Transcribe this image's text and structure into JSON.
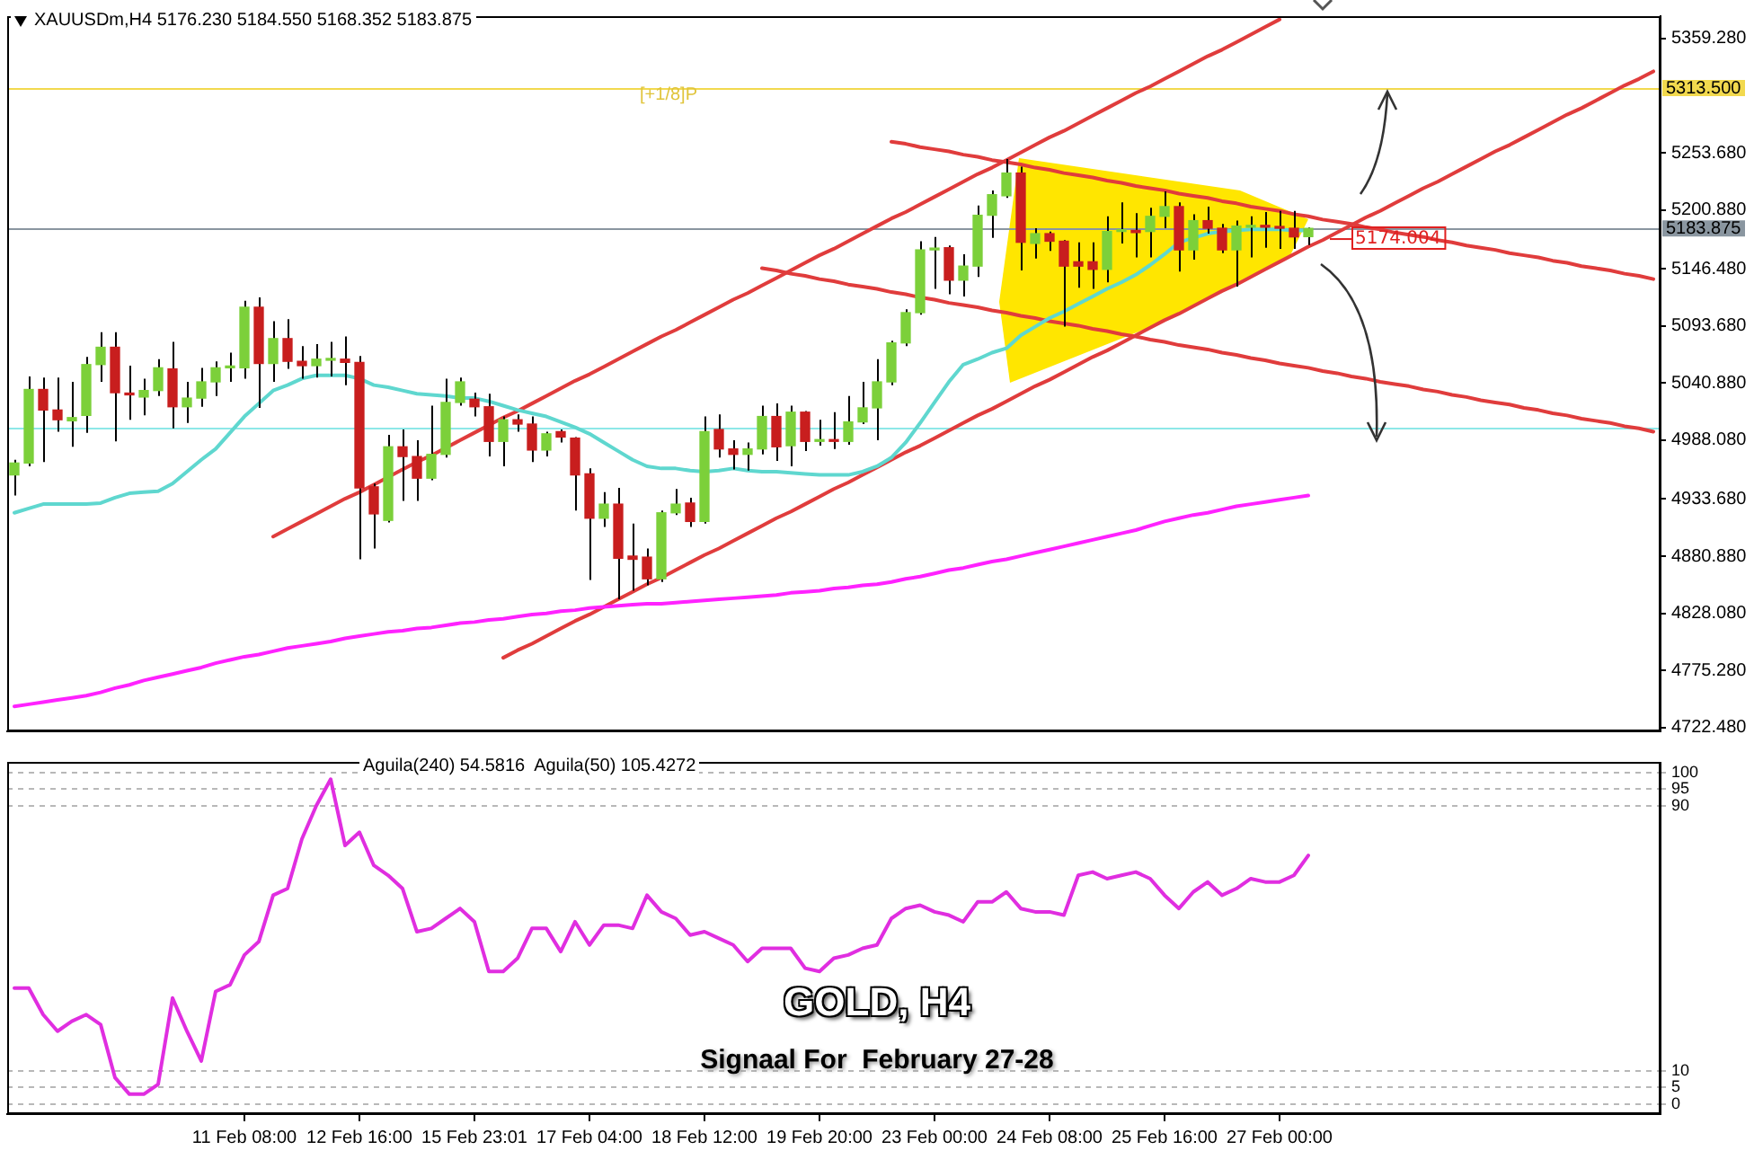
{
  "chart_data": [
    {
      "type": "candlestick",
      "title": "XAUUSDm,H4 5176.230 5184.550 5168.352 5183.875",
      "categories": [
        null,
        null,
        null,
        null,
        null,
        null,
        null,
        null,
        null,
        null,
        null,
        null,
        null,
        null,
        null,
        null,
        null,
        null,
        null,
        null,
        null,
        null,
        null,
        null,
        null,
        null,
        null,
        null,
        null,
        null,
        null,
        null,
        null,
        null,
        null,
        null,
        null,
        null,
        null,
        null,
        null,
        null,
        null,
        null,
        null,
        null,
        null,
        null,
        null,
        null,
        null,
        null,
        null,
        null,
        null,
        null,
        null,
        null,
        null,
        null,
        null,
        null,
        null,
        null,
        null,
        null,
        null,
        null,
        null,
        null,
        null,
        null,
        null,
        null,
        null,
        null,
        null,
        null,
        null,
        null,
        null,
        null,
        null,
        null,
        null,
        null,
        null,
        null,
        null,
        null,
        null,
        null,
        null,
        null,
        null,
        null,
        null,
        null,
        null,
        null,
        null,
        null,
        null,
        null,
        null,
        null,
        null,
        null,
        null,
        null,
        null,
        null,
        null,
        null,
        null
      ],
      "ohlc": [
        [
          4956,
          4970,
          4937,
          4967
        ],
        [
          4967,
          5047,
          4964,
          5035
        ],
        [
          5035,
          5046,
          4968,
          5016
        ],
        [
          5016,
          5046,
          4996,
          5007
        ],
        [
          5006,
          5042,
          4982,
          5009
        ],
        [
          5011,
          5065,
          4995,
          5058
        ],
        [
          5058,
          5088,
          5042,
          5074
        ],
        [
          5074,
          5088,
          4987,
          5032
        ],
        [
          5031,
          5057,
          5007,
          5030
        ],
        [
          5028,
          5045,
          5011,
          5034
        ],
        [
          5034,
          5063,
          5029,
          5055
        ],
        [
          5054,
          5079,
          4999,
          5019
        ],
        [
          5019,
          5042,
          5004,
          5027
        ],
        [
          5027,
          5055,
          5019,
          5042
        ],
        [
          5042,
          5061,
          5029,
          5055
        ],
        [
          5055,
          5069,
          5042,
          5056
        ],
        [
          5055,
          5117,
          5045,
          5111
        ],
        [
          5111,
          5120,
          5018,
          5059
        ],
        [
          5059,
          5098,
          5042,
          5082
        ],
        [
          5082,
          5100,
          5054,
          5061
        ],
        [
          5061,
          5075,
          5045,
          5057
        ],
        [
          5057,
          5077,
          5046,
          5063
        ],
        [
          5062,
          5079,
          5047,
          5063
        ],
        [
          5063,
          5084,
          5039,
          5060
        ],
        [
          5060,
          5066,
          4878,
          4944
        ],
        [
          4945,
          4948,
          4888,
          4920
        ],
        [
          4914,
          4993,
          4912,
          4982
        ],
        [
          4982,
          4998,
          4932,
          4973
        ],
        [
          4973,
          4988,
          4932,
          4953
        ],
        [
          4953,
          5020,
          4951,
          4975
        ],
        [
          4975,
          5045,
          4972,
          5023
        ],
        [
          5023,
          5046,
          5020,
          5042
        ],
        [
          5026,
          5032,
          5010,
          5019
        ],
        [
          5019,
          5031,
          4973,
          4987
        ],
        [
          4987,
          5010,
          4964,
          5007
        ],
        [
          5007,
          5012,
          4996,
          5003
        ],
        [
          5003,
          5010,
          4968,
          4979
        ],
        [
          4979,
          4996,
          4973,
          4994
        ],
        [
          4996,
          4998,
          4986,
          4991
        ],
        [
          4990,
          4991,
          4923,
          4956
        ],
        [
          4957,
          4962,
          4859,
          4916
        ],
        [
          4916,
          4940,
          4908,
          4929
        ],
        [
          4929,
          4944,
          4841,
          4879
        ],
        [
          4881,
          4911,
          4849,
          4878
        ],
        [
          4880,
          4888,
          4854,
          4860
        ],
        [
          4860,
          4923,
          4857,
          4921
        ],
        [
          4921,
          4943,
          4919,
          4929
        ],
        [
          4930,
          4935,
          4908,
          4913
        ],
        [
          4913,
          5010,
          4911,
          4996
        ],
        [
          4998,
          5012,
          4972,
          4980
        ],
        [
          4980,
          4988,
          4961,
          4975
        ],
        [
          4975,
          4986,
          4960,
          4980
        ],
        [
          4980,
          5020,
          4975,
          5010
        ],
        [
          5010,
          5022,
          4969,
          4982
        ],
        [
          4983,
          5020,
          4964,
          5014
        ],
        [
          5014,
          5015,
          4978,
          4987
        ],
        [
          4987,
          5007,
          4983,
          4988
        ],
        [
          4988,
          5014,
          4980,
          4987
        ],
        [
          4987,
          5029,
          4984,
          5005
        ],
        [
          5005,
          5042,
          5003,
          5018
        ],
        [
          5018,
          5063,
          4988,
          5042
        ],
        [
          5042,
          5080,
          5039,
          5078
        ],
        [
          5078,
          5109,
          5075,
          5106
        ],
        [
          5106,
          5172,
          5104,
          5164
        ],
        [
          5164,
          5176,
          5128,
          5165
        ],
        [
          5166,
          5168,
          5123,
          5136
        ],
        [
          5136,
          5160,
          5121,
          5149
        ],
        [
          5149,
          5205,
          5139,
          5196
        ],
        [
          5196,
          5219,
          5175,
          5215
        ],
        [
          5214,
          5248,
          5212,
          5235
        ],
        [
          5235,
          5241,
          5145,
          5171
        ],
        [
          5170,
          5184,
          5156,
          5179
        ],
        [
          5179,
          5181,
          5163,
          5172
        ],
        [
          5172,
          5173,
          5093,
          5149
        ],
        [
          5153,
          5171,
          5129,
          5149
        ],
        [
          5153,
          5171,
          5128,
          5146
        ],
        [
          5146,
          5195,
          5134,
          5181
        ],
        [
          5181,
          5208,
          5170,
          5182
        ],
        [
          5182,
          5198,
          5157,
          5180
        ],
        [
          5181,
          5203,
          5157,
          5195
        ],
        [
          5195,
          5218,
          5184,
          5204
        ],
        [
          5204,
          5208,
          5144,
          5164
        ],
        [
          5164,
          5197,
          5155,
          5191
        ],
        [
          5191,
          5204,
          5179,
          5184
        ],
        [
          5184,
          5188,
          5161,
          5164
        ],
        [
          5164,
          5191,
          5130,
          5186
        ],
        [
          5185,
          5195,
          5157,
          5186
        ],
        [
          5186,
          5199,
          5166,
          5185
        ],
        [
          5185,
          5200,
          5165,
          5184
        ],
        [
          5184,
          5200,
          5165,
          5176
        ],
        [
          5176.23,
          5184.55,
          5168.352,
          5183.875
        ],
        null,
        null,
        null,
        null,
        null,
        null,
        null,
        null,
        null,
        null,
        null,
        null,
        null,
        null,
        null,
        null,
        null,
        null,
        null,
        null,
        null,
        null,
        null,
        null
      ],
      "colors": [
        "#7cd03a",
        "#7cd03a",
        "#c81e1e",
        "#c81e1e",
        "#7cd03a",
        "#7cd03a",
        "#7cd03a",
        "#c81e1e",
        "#c81e1e",
        "#7cd03a",
        "#7cd03a",
        "#c81e1e",
        "#7cd03a",
        "#7cd03a",
        "#7cd03a",
        "#7cd03a",
        "#7cd03a",
        "#c81e1e",
        "#7cd03a",
        "#c81e1e",
        "#c81e1e",
        "#7cd03a",
        "#7cd03a",
        "#c81e1e",
        "#c81e1e",
        "#c81e1e",
        "#7cd03a",
        "#c81e1e",
        "#c81e1e",
        "#7cd03a",
        "#7cd03a",
        "#7cd03a",
        "#c81e1e",
        "#c81e1e",
        "#7cd03a",
        "#c81e1e",
        "#c81e1e",
        "#7cd03a",
        "#c81e1e",
        "#c81e1e",
        "#c81e1e",
        "#7cd03a",
        "#c81e1e",
        "#c81e1e",
        "#c81e1e",
        "#7cd03a",
        "#7cd03a",
        "#c81e1e",
        "#7cd03a",
        "#c81e1e",
        "#c81e1e",
        "#7cd03a",
        "#7cd03a",
        "#c81e1e",
        "#7cd03a",
        "#c81e1e",
        "#7cd03a",
        "#c81e1e",
        "#7cd03a",
        "#7cd03a",
        "#7cd03a",
        "#7cd03a",
        "#7cd03a",
        "#7cd03a",
        "#7cd03a",
        "#c81e1e",
        "#7cd03a",
        "#7cd03a",
        "#7cd03a",
        "#7cd03a",
        "#c81e1e",
        "#7cd03a",
        "#c81e1e",
        "#c81e1e",
        "#c81e1e",
        "#c81e1e",
        "#7cd03a",
        "#7cd03a",
        "#c81e1e",
        "#7cd03a",
        "#7cd03a",
        "#c81e1e",
        "#7cd03a",
        "#c81e1e",
        "#c81e1e",
        "#7cd03a",
        "#7cd03a",
        "#c81e1e",
        "#c81e1e",
        "#c81e1e",
        "#7cd03a",
        null,
        null,
        null,
        null,
        null,
        null,
        null,
        null,
        null,
        null,
        null,
        null,
        null,
        null,
        null,
        null,
        null,
        null,
        null,
        null,
        null,
        null,
        null,
        null
      ],
      "series": [
        {
          "type": "line",
          "color": "#5fd7cf",
          "values": [
            4921,
            4925,
            4929,
            4929,
            4929,
            4929,
            4930,
            4935,
            4939,
            4940,
            4941,
            4948,
            4959,
            4970,
            4980,
            4995,
            5010,
            5022,
            5034,
            5039,
            5045,
            5048,
            5048,
            5048,
            5045,
            5039,
            5037,
            5034,
            5031,
            5030,
            5029,
            5027,
            5027,
            5024,
            5020,
            5016,
            5013,
            5010,
            5005,
            5000,
            4994,
            4986,
            4978,
            4970,
            4964,
            4962,
            4962,
            4960,
            4959,
            4960,
            4962,
            4960,
            4959,
            4959,
            4958,
            4957,
            4956,
            4956,
            4956,
            4959,
            4964,
            4972,
            4986,
            5004,
            5023,
            5042,
            5058,
            5063,
            5069,
            5073,
            5085,
            5093,
            5101,
            5107,
            5114,
            5121,
            5128,
            5134,
            5141,
            5150,
            5160,
            5171,
            5175,
            5179,
            5181,
            5182,
            5183,
            5183,
            5183,
            5182,
            5182,
            null,
            null,
            null,
            null,
            null,
            null,
            null,
            null,
            null,
            null,
            null,
            null,
            null,
            null,
            null,
            null,
            null,
            null,
            null,
            null,
            null,
            null,
            null,
            null
          ]
        },
        {
          "type": "line",
          "color": "#ff22ff",
          "values": [
            4742,
            4744,
            4746,
            4748,
            4750,
            4752,
            4755,
            4759,
            4762,
            4766,
            4769,
            4772,
            4775,
            4778,
            4782,
            4785,
            4788,
            4790,
            4793,
            4796,
            4798,
            4800,
            4802,
            4805,
            4807,
            4809,
            4811,
            4812,
            4814,
            4815,
            4817,
            4819,
            4820,
            4822,
            4823,
            4825,
            4827,
            4828,
            4830,
            4831,
            4833,
            4834,
            4835,
            4836,
            4837,
            4837,
            4838,
            4839,
            4840,
            4841,
            4842,
            4843,
            4844,
            4845,
            4847,
            4848,
            4849,
            4851,
            4852,
            4854,
            4855,
            4857,
            4860,
            4862,
            4865,
            4868,
            4870,
            4873,
            4876,
            4878,
            4881,
            4884,
            4887,
            4890,
            4893,
            4896,
            4899,
            4902,
            4905,
            4909,
            4913,
            4916,
            4919,
            4921,
            4924,
            4927,
            4929,
            4931,
            4933,
            4935,
            4937,
            null,
            null,
            null,
            null,
            null,
            null,
            null,
            null,
            null,
            null,
            null,
            null,
            null,
            null,
            null,
            null,
            null,
            null,
            null,
            null,
            null,
            null,
            null,
            null
          ]
        },
        {
          "type": "line",
          "color": "#e03c3c",
          "values": [
            null,
            null,
            null,
            null,
            null,
            null,
            null,
            null,
            null,
            null,
            null,
            null,
            null,
            null,
            null,
            null,
            null,
            null,
            4899,
            4906,
            4913,
            4920,
            4927,
            4934,
            4940,
            4947,
            4954,
            4961,
            4968,
            4974,
            4981,
            4988,
            4995,
            5002,
            5009,
            5015,
            5022,
            5029,
            5036,
            5043,
            5049,
            5056,
            5063,
            5070,
            5077,
            5084,
            5090,
            5097,
            5104,
            5111,
            5118,
            5124,
            5131,
            5138,
            5145,
            5152,
            5159,
            5165,
            5172,
            5179,
            5186,
            5193,
            5199,
            5206,
            5213,
            5220,
            5227,
            5234,
            5240,
            5247,
            5254,
            5261,
            5268,
            5274,
            5281,
            5288,
            5295,
            5302,
            5309,
            5315,
            5322,
            5329,
            5336,
            5343,
            5349,
            5356,
            5363,
            5370,
            5377,
            null,
            null,
            null,
            null,
            null,
            null,
            null,
            null,
            null,
            null,
            null,
            null,
            null,
            null,
            null,
            null,
            null,
            null,
            null,
            null,
            null,
            null,
            null,
            null,
            null,
            null
          ]
        },
        {
          "type": "line",
          "color": "#e03c3c",
          "values": [
            null,
            null,
            null,
            null,
            null,
            null,
            null,
            null,
            null,
            null,
            null,
            null,
            null,
            null,
            null,
            null,
            null,
            null,
            null,
            null,
            null,
            null,
            null,
            null,
            null,
            null,
            null,
            null,
            null,
            null,
            null,
            null,
            null,
            null,
            4787,
            4794,
            4800,
            4807,
            4814,
            4821,
            4827,
            4834,
            4841,
            4848,
            4855,
            4861,
            4868,
            4875,
            4882,
            4888,
            4895,
            4902,
            4909,
            4916,
            4922,
            4929,
            4936,
            4943,
            4949,
            4956,
            4963,
            4970,
            4977,
            4983,
            4990,
            4997,
            5004,
            5011,
            5017,
            5024,
            5031,
            5038,
            5044,
            5051,
            5058,
            5065,
            5071,
            5078,
            5085,
            5092,
            5099,
            5105,
            5112,
            5119,
            5126,
            5132,
            5139,
            5146,
            5153,
            5160,
            5167,
            5173,
            5180,
            5187,
            5194,
            5200,
            5207,
            5214,
            5221,
            5227,
            5234,
            5241,
            5248,
            5255,
            5261,
            5268,
            5275,
            5282,
            5289,
            5295,
            5302,
            5309,
            5316,
            5322,
            5329
          ]
        },
        {
          "type": "line",
          "color": "#e03c3c",
          "values": [
            null,
            null,
            null,
            null,
            null,
            null,
            null,
            null,
            null,
            null,
            null,
            null,
            null,
            null,
            null,
            null,
            null,
            null,
            null,
            null,
            null,
            null,
            null,
            null,
            null,
            null,
            null,
            null,
            null,
            null,
            null,
            null,
            null,
            null,
            null,
            null,
            null,
            null,
            null,
            null,
            null,
            null,
            null,
            null,
            null,
            null,
            null,
            null,
            null,
            null,
            null,
            null,
            null,
            null,
            null,
            null,
            null,
            null,
            null,
            null,
            null,
            5264,
            5262,
            5259,
            5257,
            5255,
            5252,
            5250,
            5247,
            5245,
            5243,
            5240,
            5238,
            5235,
            5233,
            5231,
            5228,
            5226,
            5223,
            5221,
            5219,
            5216,
            5214,
            5212,
            5209,
            5207,
            5204,
            5202,
            5200,
            5197,
            5195,
            5192,
            5190,
            5188,
            5185,
            5183,
            5180,
            5178,
            5176,
            5173,
            5171,
            5168,
            5166,
            5164,
            5161,
            5159,
            5157,
            5154,
            5152,
            5149,
            5147,
            5145,
            5142,
            5140,
            5137
          ]
        },
        {
          "type": "line",
          "color": "#e03c3c",
          "values": [
            null,
            null,
            null,
            null,
            null,
            null,
            null,
            null,
            null,
            null,
            null,
            null,
            null,
            null,
            null,
            null,
            null,
            null,
            null,
            null,
            null,
            null,
            null,
            null,
            null,
            null,
            null,
            null,
            null,
            null,
            null,
            null,
            null,
            null,
            null,
            null,
            null,
            null,
            null,
            null,
            null,
            null,
            null,
            null,
            null,
            null,
            null,
            null,
            null,
            null,
            null,
            null,
            5147,
            5145,
            5142,
            5140,
            5137,
            5135,
            5132,
            5130,
            5128,
            5125,
            5123,
            5120,
            5118,
            5115,
            5113,
            5111,
            5108,
            5106,
            5103,
            5101,
            5098,
            5096,
            5094,
            5091,
            5089,
            5086,
            5084,
            5081,
            5079,
            5076,
            5074,
            5072,
            5069,
            5067,
            5064,
            5062,
            5059,
            5057,
            5055,
            5052,
            5050,
            5047,
            5045,
            5042,
            5040,
            5038,
            5035,
            5033,
            5030,
            5028,
            5025,
            5023,
            5021,
            5018,
            5016,
            5013,
            5011,
            5008,
            5006,
            5004,
            5001,
            4999,
            4996
          ]
        }
      ],
      "ylim": [
        4719,
        5380
      ],
      "yticks": [
        {
          "value": 5359.28,
          "label": "5359.280"
        },
        {
          "value": 5253.68,
          "label": "5253.680"
        },
        {
          "value": 5200.88,
          "label": "5200.880"
        },
        {
          "value": 5146.48,
          "label": "5146.480"
        },
        {
          "value": 5093.68,
          "label": "5093.680"
        },
        {
          "value": 5040.88,
          "label": "5040.880"
        },
        {
          "value": 4988.08,
          "label": "4988.080"
        },
        {
          "value": 4933.68,
          "label": "4933.680"
        },
        {
          "value": 4880.88,
          "label": "4880.880"
        },
        {
          "value": 4828.08,
          "label": "4828.080"
        },
        {
          "value": 4775.28,
          "label": "4775.280"
        },
        {
          "value": 4722.48,
          "label": "4722.480"
        }
      ],
      "ref_lines": [
        {
          "axis": "y",
          "value": 5313.5,
          "label": "5313.500",
          "color": "#f2d94e"
        },
        {
          "axis": "y",
          "value": 5000,
          "color": "#8ee8e8"
        },
        {
          "axis": "y",
          "value": 5183.875,
          "label": "5183.875",
          "color": "#8a96a0"
        }
      ],
      "annotations": [
        "[+1/8]P",
        {
          "text": "5174.004",
          "y": 5174.004
        }
      ],
      "tick_labels": "y"
    },
    {
      "type": "line",
      "title": "Aguila(240) 54.5816  Aguila(50) 105.4272",
      "categories": [
        null,
        null,
        null,
        null,
        null,
        null,
        null,
        null,
        null,
        null,
        null,
        null,
        null,
        null,
        null,
        null,
        "11 Feb 08:00",
        null,
        null,
        null,
        null,
        null,
        null,
        null,
        "12 Feb 16:00",
        null,
        null,
        null,
        null,
        null,
        null,
        null,
        "15 Feb 23:01",
        null,
        null,
        null,
        null,
        null,
        null,
        null,
        "17 Feb 04:00",
        null,
        null,
        null,
        null,
        null,
        null,
        null,
        "18 Feb 12:00",
        null,
        null,
        null,
        null,
        null,
        null,
        null,
        "19 Feb 20:00",
        null,
        null,
        null,
        null,
        null,
        null,
        null,
        "23 Feb 00:00",
        null,
        null,
        null,
        null,
        null,
        null,
        null,
        "24 Feb 08:00",
        null,
        null,
        null,
        null,
        null,
        null,
        null,
        "25 Feb 16:00",
        null,
        null,
        null,
        null,
        null,
        null,
        null,
        "27 Feb 00:00",
        null,
        null,
        null,
        null,
        null,
        null,
        null,
        null,
        null,
        null,
        null,
        null,
        null,
        null,
        null,
        null,
        null,
        null,
        null,
        null,
        null,
        null,
        null,
        null,
        null,
        null
      ],
      "series": [
        {
          "color": "#e02ee0",
          "values": [
            35,
            35,
            27,
            22,
            25,
            27,
            24,
            8,
            3,
            3,
            6,
            32,
            22,
            13,
            34,
            36,
            45,
            49,
            63,
            65,
            80,
            90,
            98,
            78,
            82,
            72,
            69,
            65,
            52,
            53,
            56,
            59,
            55,
            40,
            40,
            44,
            53,
            53,
            46,
            55,
            48,
            54,
            54,
            53,
            63,
            58,
            56,
            51,
            52,
            50,
            48,
            43,
            47,
            47,
            47,
            41,
            40,
            44,
            45,
            47,
            48,
            56,
            59,
            60,
            58,
            57,
            55,
            61,
            61,
            64,
            59,
            58,
            58,
            57,
            69,
            70,
            68,
            69,
            70,
            68,
            63,
            59,
            64,
            67,
            63,
            65,
            68,
            67,
            67,
            69,
            75,
            null,
            null,
            null,
            null,
            null,
            null,
            null,
            null,
            null,
            null,
            null,
            null,
            null,
            null,
            null,
            null,
            null,
            null,
            null,
            null,
            null,
            null,
            null,
            null
          ]
        }
      ],
      "ylim": [
        -3,
        103
      ],
      "yticks": [
        0,
        5,
        10,
        90,
        95,
        100
      ],
      "grid": "y",
      "annotations": [
        "GOLD, H4",
        "Signaal For  February 27-28"
      ]
    }
  ]
}
